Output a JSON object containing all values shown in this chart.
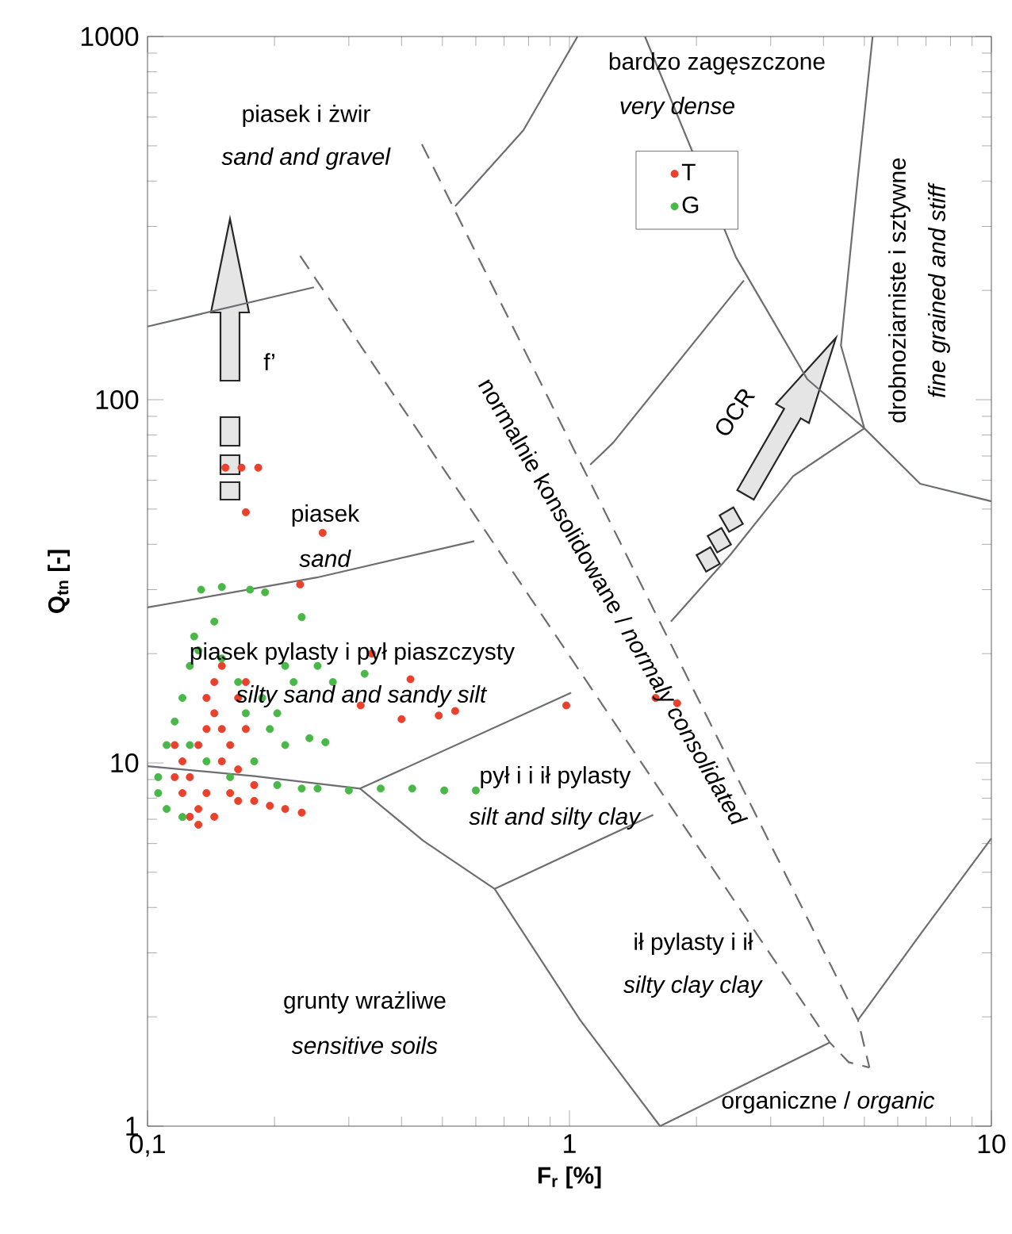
{
  "chart_data": {
    "type": "scatter",
    "xlabel": "F$_{r}$ [%]",
    "ylabel": "Q$_{tn}$ [-]",
    "log": "xy",
    "grid": false,
    "legend": "top right",
    "marker": "circle",
    "xlim": [
      0.1,
      10
    ],
    "ylim": [
      1,
      1000
    ],
    "xticks": [
      {
        "value": 0.1,
        "label": "0,1"
      },
      1,
      10
    ],
    "yticks": [
      1,
      10,
      100,
      1000
    ],
    "series": [
      {
        "type": "line",
        "color": "#6d6e71",
        "marker": "none",
        "line_style": "solid",
        "x": [
          0.1,
          0.248
        ],
        "values": [
          159,
          204
        ]
      },
      {
        "type": "line",
        "color": "#6d6e71",
        "marker": "none",
        "line_style": "solid",
        "x": [
          0.1,
          0.252,
          0.595
        ],
        "values": [
          26.8,
          32.4,
          40.8
        ]
      },
      {
        "type": "line",
        "color": "#6d6e71",
        "marker": "none",
        "line_style": "solid",
        "x": [
          0.319,
          1.009
        ],
        "values": [
          8.5,
          15.6
        ]
      },
      {
        "type": "line",
        "color": "#6d6e71",
        "marker": "none",
        "line_style": "solid",
        "x": [
          0.1,
          0.179,
          0.319,
          0.451,
          0.665,
          1.06,
          1.64
        ],
        "values": [
          9.8,
          9.2,
          8.5,
          6.1,
          4.5,
          1.96,
          1.0
        ]
      },
      {
        "type": "line",
        "color": "#6d6e71",
        "marker": "none",
        "line_style": "solid",
        "x": [
          0.665,
          1.58
        ],
        "values": [
          4.5,
          7.2
        ]
      },
      {
        "type": "line",
        "color": "#6d6e71",
        "marker": "none",
        "line_style": "solid",
        "x": [
          1.64,
          4.14
        ],
        "values": [
          1.0,
          1.7
        ]
      },
      {
        "type": "line",
        "color": "#6d6e71",
        "marker": "none",
        "line_style": "solid",
        "x": [
          4.83,
          6.78,
          10
        ],
        "values": [
          1.96,
          3.37,
          6.2
        ]
      },
      {
        "type": "line",
        "color": "#6d6e71",
        "marker": "none",
        "line_style": "solid",
        "x": [
          5.23,
          4.79,
          4.4,
          5.0,
          6.78,
          10
        ],
        "values": [
          1000,
          377,
          141,
          83.4,
          58.7,
          52.5
        ]
      },
      {
        "type": "line",
        "color": "#6d6e71",
        "marker": "none",
        "line_style": "solid",
        "x": [
          1.045,
          0.778,
          0.536
        ],
        "values": [
          1000,
          552,
          341
        ]
      },
      {
        "type": "line",
        "color": "#6d6e71",
        "marker": "none",
        "line_style": "solid",
        "x": [
          1.51,
          1.93,
          2.48,
          3.66,
          5.0
        ],
        "values": [
          1000,
          null,
          247,
          114,
          83.4
        ]
      },
      {
        "type": "line",
        "color": "#6d6e71",
        "marker": "none",
        "line_style": "solid",
        "x": [
          2.59,
          1.27,
          1.12
        ],
        "values": [
          213,
          76.2,
          66.2
        ]
      },
      {
        "type": "line",
        "color": "#6d6e71",
        "marker": "none",
        "line_style": "solid",
        "x": [
          1.74,
          2.4,
          3.39,
          5.0
        ],
        "values": [
          24.5,
          37.3,
          61.6,
          83.4
        ]
      },
      {
        "type": "line",
        "color": "#6d6e71",
        "marker": "none",
        "line_style": "dashed",
        "x": [
          0.23,
          4.14,
          4.59,
          5.14
        ],
        "values": [
          249,
          1.7,
          1.5,
          1.45
        ]
      },
      {
        "type": "line",
        "color": "#6d6e71",
        "marker": "none",
        "line_style": "dashed",
        "x": [
          0.447,
          4.83,
          5.14
        ],
        "values": [
          505,
          1.96,
          1.45
        ]
      },
      {
        "name": "T",
        "color": "#e8412c",
        "x": [
          0.153,
          0.167,
          0.183,
          0.171,
          0.26,
          0.23,
          0.34,
          0.42,
          0.32,
          0.4,
          0.49,
          0.536,
          0.983,
          1.6,
          1.8,
          0.116,
          0.121,
          0.121,
          0.126,
          0.132,
          0.126,
          0.132,
          0.138,
          0.138,
          0.144,
          0.15,
          0.144,
          0.15,
          0.138,
          0.157,
          0.164,
          0.179,
          0.195,
          0.212,
          0.232,
          0.157,
          0.164,
          0.15,
          0.171,
          0.164,
          0.179,
          0.132,
          0.144,
          0.116,
          0.171
        ],
        "values": [
          65,
          65,
          65,
          49,
          43,
          31,
          20,
          17,
          14.4,
          13.2,
          13.5,
          13.9,
          14.4,
          15.1,
          14.6,
          11.2,
          10.1,
          8.26,
          7.11,
          7.47,
          9.14,
          11.2,
          12.4,
          15.1,
          16.7,
          18.5,
          13.7,
          10.1,
          8.26,
          8.26,
          7.86,
          7.86,
          7.62,
          7.47,
          7.3,
          11.2,
          9.6,
          12.4,
          12.4,
          15.1,
          8.69,
          6.76,
          7.11,
          9.14,
          16.7
        ]
      },
      {
        "name": "G",
        "color": "#4ab848",
        "x": [
          0.134,
          0.15,
          0.175,
          0.19,
          0.232,
          0.144,
          0.129,
          0.106,
          0.106,
          0.111,
          0.111,
          0.116,
          0.121,
          0.126,
          0.132,
          0.15,
          0.164,
          0.171,
          0.187,
          0.195,
          0.203,
          0.212,
          0.222,
          0.253,
          0.275,
          0.327,
          0.212,
          0.242,
          0.264,
          0.179,
          0.157,
          0.203,
          0.232,
          0.253,
          0.3,
          0.357,
          0.424,
          0.505,
          0.6,
          0.121,
          0.138,
          0.126
        ],
        "values": [
          30,
          30.5,
          30,
          29.5,
          25.2,
          24.5,
          22.3,
          9.14,
          8.26,
          7.47,
          11.2,
          13.0,
          15.1,
          18.5,
          20.4,
          19.4,
          16.7,
          13.7,
          15.1,
          12.4,
          13.7,
          18.5,
          16.7,
          18.5,
          16.7,
          17.6,
          11.2,
          11.7,
          11.4,
          10.1,
          9.14,
          8.69,
          8.5,
          8.5,
          8.4,
          8.5,
          8.5,
          8.4,
          8.4,
          7.1,
          10.1,
          11.2
        ]
      }
    ],
    "annotations": [
      "piasek i żwir",
      "*sand and gravel*",
      "bardzo zagęszczone",
      "*very dense*",
      "piasek",
      "*sand*",
      "piasek pylasty i pył piaszczysty",
      "*silty sand and sandy silt*",
      "pył i i ił pylasty",
      "*silt and silty clay*",
      "ił pylasty i ił",
      "*silty clay clay*",
      "grunty wrażliwe",
      "*sensitive soils*",
      "organiczne / *organic*",
      "drobnoziarniste i sztywne",
      "*fine grained and stiff*",
      "normalnie konsolidowane / *normaly consolidated*",
      "OCR",
      "f’"
    ]
  }
}
